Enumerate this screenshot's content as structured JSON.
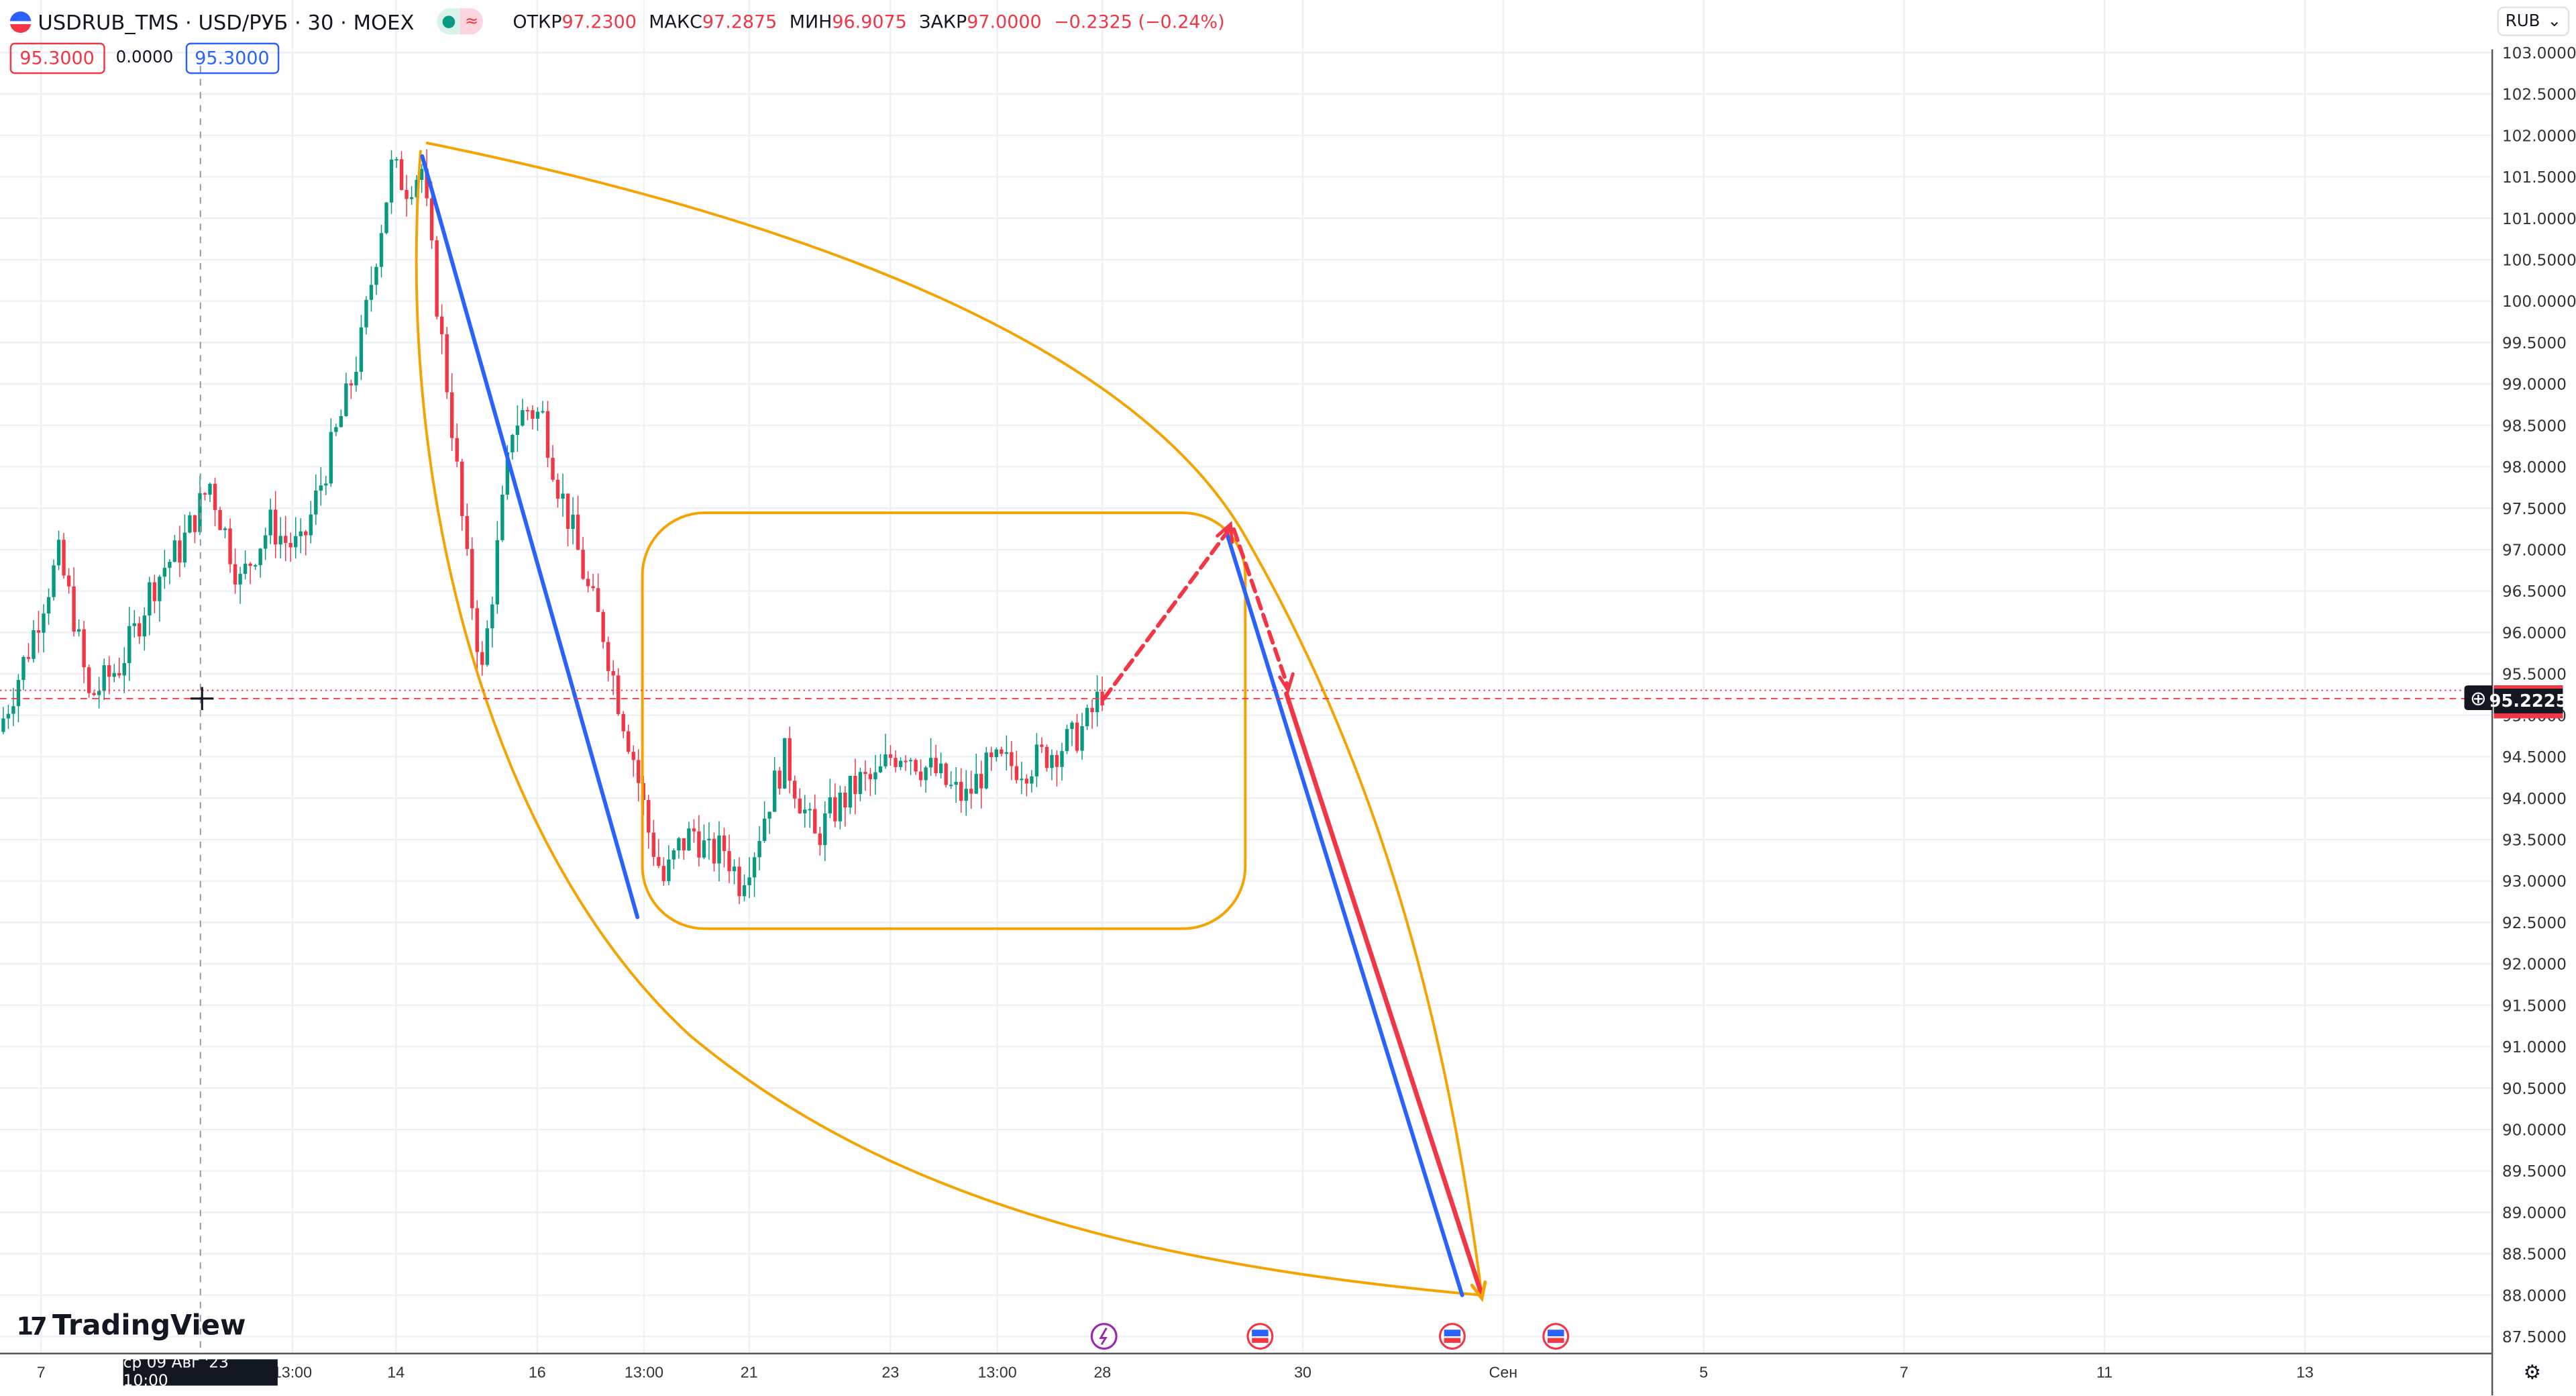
{
  "header": {
    "symbol": "USDRUB_TMS · USD/РУБ · 30 · MOEX",
    "open_label": "ОТКР",
    "open": "97.2300",
    "high_label": "МАКС",
    "high": "97.2875",
    "low_label": "МИН",
    "low": "96.9075",
    "close_label": "ЗАКР",
    "close": "97.0000",
    "change": "−0.2325 (−0.24%)",
    "status_dot": "●",
    "status_wave": "≈"
  },
  "trade": {
    "sell": "95.3000",
    "spread": "0.0000",
    "buy": "95.3000"
  },
  "currency": {
    "value": "RUB",
    "chevron": "⌄"
  },
  "logo": {
    "mark": "17",
    "name": "TradingView"
  },
  "current_price": "95.2225",
  "crosshair_time": "ср 09 Авг '23   10:00",
  "colors": {
    "up": "#089981",
    "down": "#f23645",
    "accent_blue": "#2962ff",
    "drawing_orange": "#f5a300",
    "grid": "#edf0f5"
  },
  "chart_data": {
    "type": "candlestick",
    "y_ticks": [
      "103.0000",
      "102.5000",
      "102.0000",
      "101.5000",
      "101.0000",
      "100.5000",
      "100.0000",
      "99.5000",
      "99.0000",
      "98.5000",
      "98.0000",
      "97.5000",
      "97.0000",
      "96.5000",
      "96.0000",
      "95.5000",
      "95.0000",
      "94.5000",
      "94.0000",
      "93.5000",
      "93.0000",
      "92.5000",
      "92.0000",
      "91.5000",
      "91.0000",
      "90.5000",
      "90.0000",
      "89.5000",
      "89.0000",
      "88.5000",
      "88.0000",
      "87.5000"
    ],
    "ylim": [
      87.5,
      103
    ],
    "x_ticks": [
      "7",
      "13:00",
      "14",
      "16",
      "13:00",
      "21",
      "23",
      "13:00",
      "28",
      "30",
      "Сен",
      "5",
      "7",
      "11",
      "13"
    ],
    "closes": [
      94.8,
      95.3,
      95.8,
      96.4,
      96.9,
      96.2,
      95.2,
      95.4,
      95.6,
      96.0,
      96.5,
      96.8,
      97.0,
      97.4,
      97.8,
      97.2,
      96.6,
      97.0,
      97.3,
      97.1,
      97.0,
      97.6,
      98.2,
      98.8,
      99.5,
      100.6,
      101.6,
      101.4,
      101.6,
      100.0,
      98.5,
      96.8,
      95.5,
      97.0,
      98.5,
      98.7,
      98.6,
      97.8,
      97.2,
      96.5,
      96.0,
      95.2,
      94.5,
      93.6,
      93.0,
      93.4,
      93.6,
      93.3,
      93.4,
      93.0,
      93.4,
      94.0,
      94.5,
      94.0,
      93.5,
      93.8,
      94.0,
      94.2,
      94.2,
      94.5,
      94.6,
      94.4,
      94.3,
      94.1,
      94.0,
      94.3,
      94.4,
      94.4,
      94.4,
      94.5,
      94.6,
      94.7,
      94.9,
      95.3
    ],
    "events": [
      "earnings-bolt",
      "us-flag-event",
      "us-flag-event",
      "us-flag-event"
    ]
  }
}
